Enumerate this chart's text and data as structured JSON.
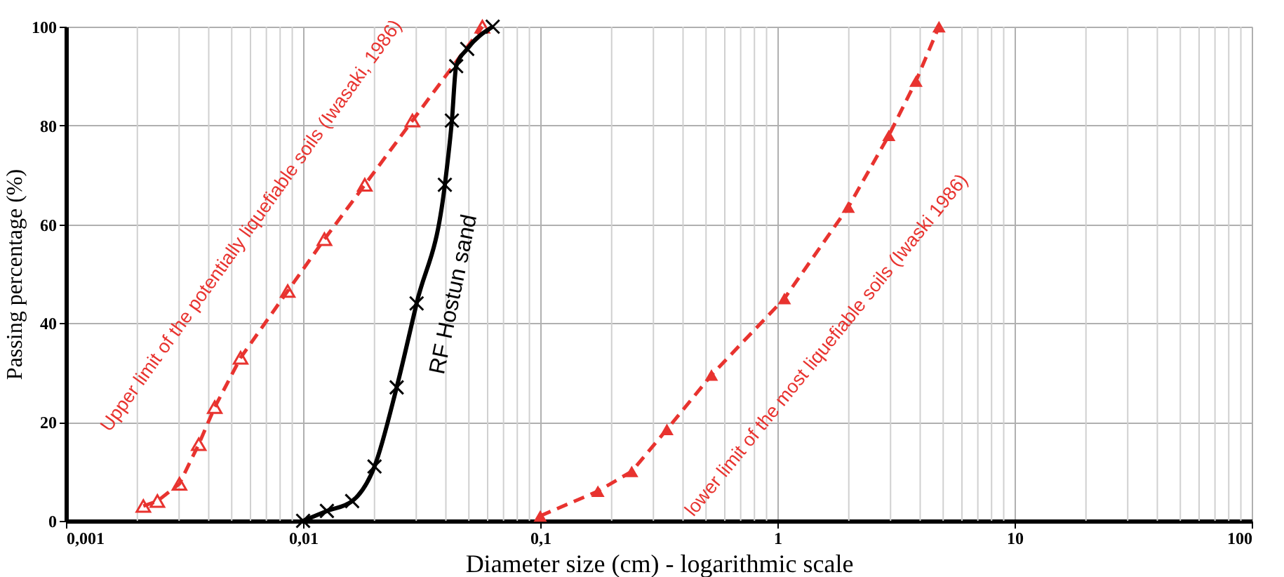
{
  "chart_data": {
    "type": "line",
    "xlabel": "Diameter size (cm) - logarithmic scale",
    "ylabel": "Passing percentage (%)",
    "log": "x",
    "grid": true,
    "xlim": [
      0.001,
      100
    ],
    "ylim": [
      0,
      100
    ],
    "xticks": [
      {
        "value": 0.001,
        "label": "0,001"
      },
      {
        "value": 0.01,
        "label": "0,01"
      },
      {
        "value": 0.1,
        "label": "0,1"
      },
      1,
      10,
      100
    ],
    "yticks": [
      0,
      20,
      40,
      60,
      80,
      100
    ],
    "series": [
      {
        "name": "Upper limit of the potentially liquefiable soils (Iwasaki, 1986)",
        "color": "#e8332f",
        "line_style": "dashed",
        "marker": "triangle",
        "x": [
          0.00212,
          0.00243,
          0.00301,
          0.00363,
          0.00424,
          0.00545,
          0.00861,
          0.0123,
          0.0182,
          0.0289,
          0.057
        ],
        "values": [
          3,
          4,
          7.5,
          15.5,
          23,
          33,
          46.5,
          57,
          68,
          81,
          100
        ]
      },
      {
        "name": "RF Hostun sand",
        "color": "#000000",
        "line_style": "solid",
        "marker": "cross",
        "x": [
          0.01,
          0.0126,
          0.0161,
          0.02,
          0.0248,
          0.0301,
          0.0396,
          0.0424,
          0.0442,
          0.0492,
          0.063
        ],
        "values": [
          0,
          2,
          4,
          11,
          27,
          44,
          68,
          81,
          92,
          95.5,
          100
        ]
      },
      {
        "name": "lower limit of the most liquefiable soils (Iwaski 1986)",
        "color": "#e8332f",
        "line_style": "dashed",
        "marker": "triangle",
        "x": [
          0.1,
          0.175,
          0.243,
          0.342,
          0.527,
          1.07,
          1.99,
          2.95,
          3.84,
          4.8
        ],
        "values": [
          1,
          6,
          10,
          18.5,
          29.5,
          45,
          63.5,
          78,
          89,
          100
        ]
      }
    ]
  }
}
